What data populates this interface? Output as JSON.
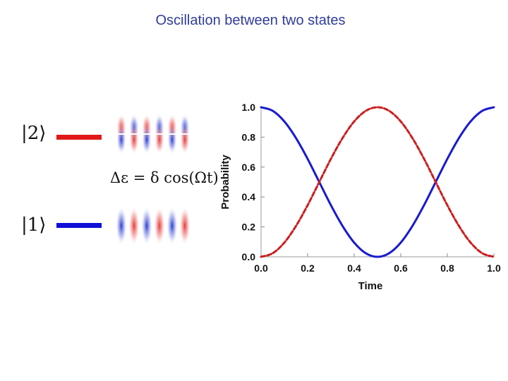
{
  "title": "Oscillation between two states",
  "levels": {
    "upper": {
      "ket_label": "|2⟩",
      "color": "#e01818"
    },
    "lower": {
      "ket_label": "|1⟩",
      "color": "#1010d8"
    }
  },
  "formula": "Δε = δ cos(Ωt)",
  "chart_data": {
    "type": "line",
    "title": "",
    "xlabel": "Time",
    "ylabel": "Probability",
    "xlim": [
      0,
      1
    ],
    "ylim": [
      0,
      1
    ],
    "x_ticks": [
      "0.0",
      "0.2",
      "0.4",
      "0.6",
      "0.8",
      "1.0"
    ],
    "y_ticks": [
      "0.0",
      "0.2",
      "0.4",
      "0.6",
      "0.8",
      "1.0"
    ],
    "grid": false,
    "series": [
      {
        "color": "#1a1ad0",
        "style": "solid",
        "x": [
          0,
          0.05,
          0.1,
          0.15,
          0.2,
          0.25,
          0.3,
          0.35,
          0.4,
          0.45,
          0.5,
          0.55,
          0.6,
          0.65,
          0.7,
          0.75,
          0.8,
          0.85,
          0.9,
          0.95,
          1.0
        ],
        "y": [
          1.0,
          0.976,
          0.905,
          0.794,
          0.655,
          0.5,
          0.345,
          0.206,
          0.095,
          0.024,
          0.0,
          0.024,
          0.095,
          0.206,
          0.345,
          0.5,
          0.655,
          0.794,
          0.905,
          0.976,
          1.0
        ]
      },
      {
        "color": "#cc1f1f",
        "style": "dashed",
        "x": [
          0,
          0.05,
          0.1,
          0.15,
          0.2,
          0.25,
          0.3,
          0.35,
          0.4,
          0.45,
          0.5,
          0.55,
          0.6,
          0.65,
          0.7,
          0.75,
          0.8,
          0.85,
          0.9,
          0.95,
          1.0
        ],
        "y": [
          0.0,
          0.024,
          0.095,
          0.206,
          0.345,
          0.5,
          0.655,
          0.794,
          0.905,
          0.976,
          1.0,
          0.976,
          0.905,
          0.794,
          0.655,
          0.5,
          0.345,
          0.206,
          0.095,
          0.024,
          0.0
        ]
      }
    ]
  }
}
